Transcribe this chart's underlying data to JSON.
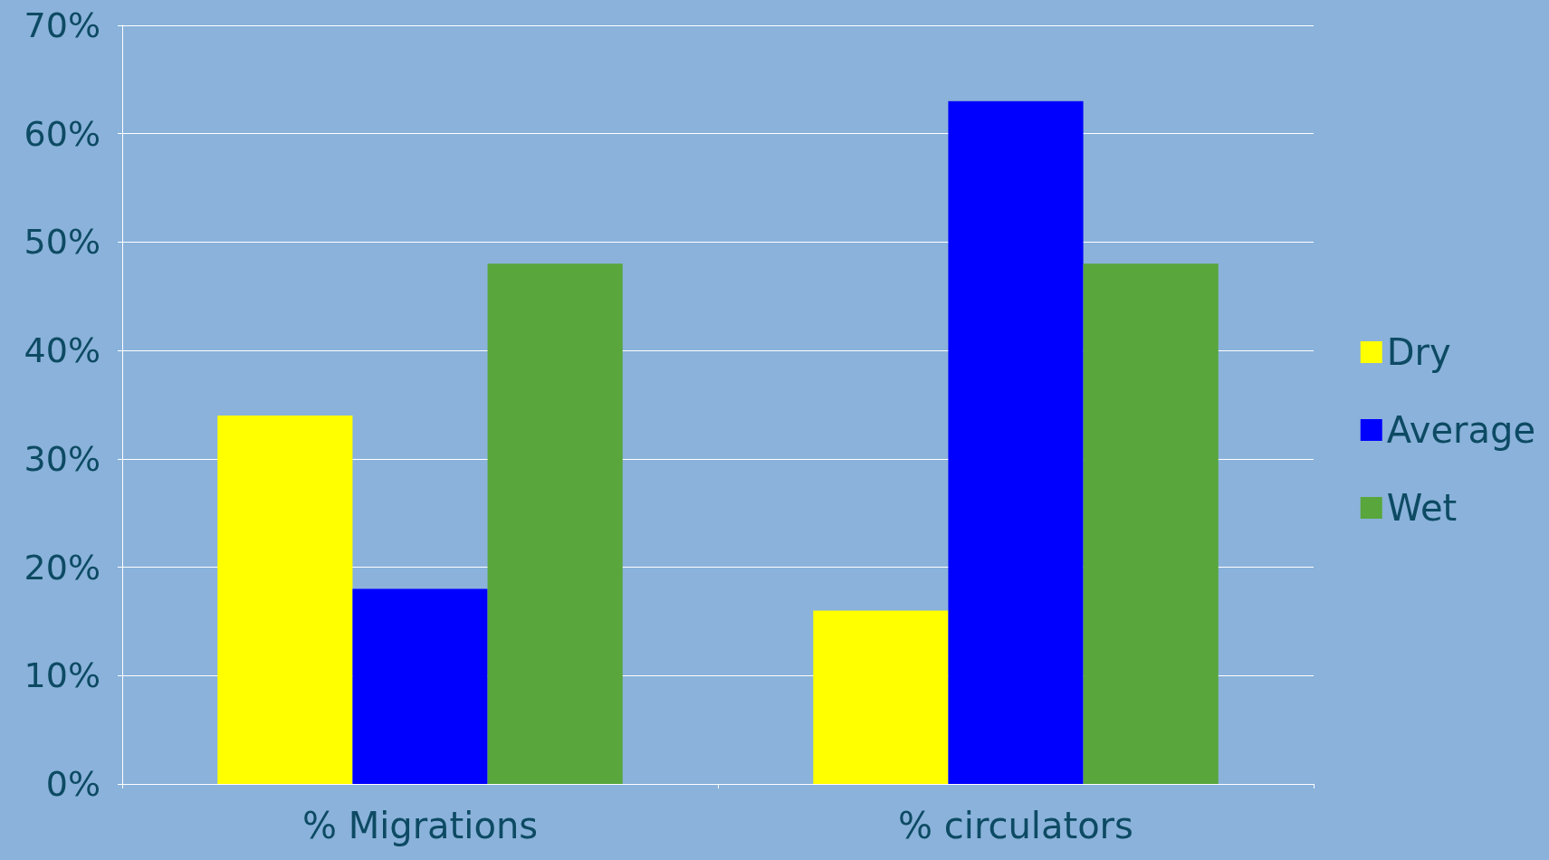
{
  "chart_data": {
    "type": "bar",
    "categories": [
      "% Migrations",
      "% circulators"
    ],
    "series": [
      {
        "name": "Dry",
        "color": "#ffff00",
        "values": [
          34,
          16
        ]
      },
      {
        "name": "Average",
        "color": "#0000ff",
        "values": [
          18,
          63
        ]
      },
      {
        "name": "Wet",
        "color": "#58a63c",
        "values": [
          48,
          48
        ]
      }
    ],
    "ylim": [
      0,
      70
    ],
    "yticks": [
      {
        "value": 0,
        "label": "0%"
      },
      {
        "value": 10,
        "label": "10%"
      },
      {
        "value": 20,
        "label": "20%"
      },
      {
        "value": 30,
        "label": "30%"
      },
      {
        "value": 40,
        "label": "40%"
      },
      {
        "value": 50,
        "label": "50%"
      },
      {
        "value": 60,
        "label": "60%"
      },
      {
        "value": 70,
        "label": "70%"
      }
    ],
    "grid": "y",
    "legend": "right"
  }
}
